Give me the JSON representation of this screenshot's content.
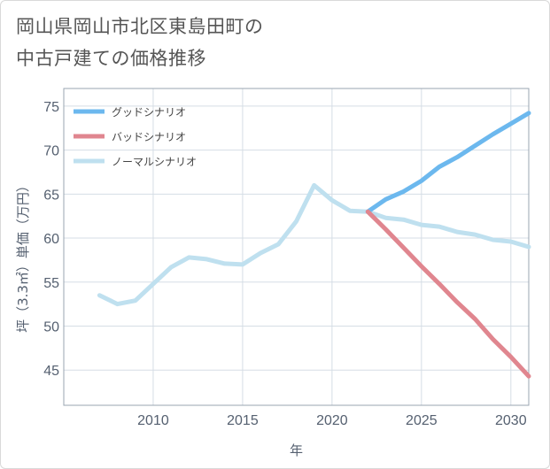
{
  "title": {
    "line1": "岡山県岡山市北区東島田町の",
    "line2": "中古戸建ての価格推移"
  },
  "chart_data": {
    "type": "line",
    "title": "岡山県岡山市北区東島田町の中古戸建ての価格推移",
    "xlabel": "年",
    "ylabel": "坪（3.3㎡）単価（万円）",
    "xlim": [
      2005,
      2031
    ],
    "ylim": [
      41,
      77
    ],
    "xticks": [
      2010,
      2015,
      2020,
      2025,
      2030
    ],
    "yticks": [
      45,
      50,
      55,
      60,
      65,
      70,
      75
    ],
    "grid": true,
    "legend_position": "top-left",
    "series": [
      {
        "name": "グッドシナリオ",
        "color": "#6cb8ee",
        "x": [
          2022,
          2023,
          2024,
          2025,
          2026,
          2027,
          2028,
          2029,
          2030,
          2031
        ],
        "y": [
          63.0,
          64.4,
          65.3,
          66.5,
          68.1,
          69.2,
          70.5,
          71.8,
          73.0,
          74.2
        ]
      },
      {
        "name": "バッドシナリオ",
        "color": "#e0868f",
        "x": [
          2022,
          2023,
          2024,
          2025,
          2026,
          2027,
          2028,
          2029,
          2030,
          2031
        ],
        "y": [
          63.0,
          61.0,
          58.9,
          56.8,
          54.8,
          52.7,
          50.8,
          48.5,
          46.5,
          44.3
        ]
      },
      {
        "name": "ノーマルシナリオ",
        "color": "#bfe0ef",
        "x": [
          2007,
          2008,
          2009,
          2010,
          2011,
          2012,
          2013,
          2014,
          2015,
          2016,
          2017,
          2018,
          2019,
          2020,
          2021,
          2022,
          2023,
          2024,
          2025,
          2026,
          2027,
          2028,
          2029,
          2030,
          2031
        ],
        "y": [
          53.5,
          52.5,
          52.9,
          54.8,
          56.7,
          57.8,
          57.6,
          57.1,
          57.0,
          58.3,
          59.3,
          61.9,
          66.0,
          64.3,
          63.1,
          63.0,
          62.3,
          62.1,
          61.5,
          61.3,
          60.7,
          60.4,
          59.8,
          59.6,
          59.0
        ]
      }
    ]
  }
}
